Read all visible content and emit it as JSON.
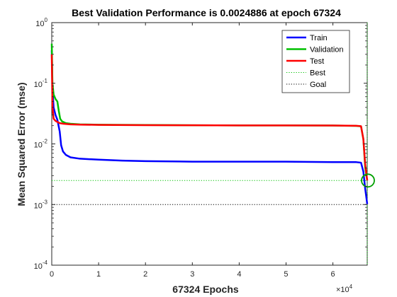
{
  "chart_data": {
    "type": "line",
    "title": "Best Validation Performance is 0.0024886 at epoch 67324",
    "xlabel": "67324 Epochs",
    "ylabel": "Mean Squared Error  (mse)",
    "x_multiplier_label": "×10",
    "x_multiplier_exponent": "4",
    "xlim": [
      0,
      67324
    ],
    "ylim": [
      0.0001,
      1
    ],
    "yscale": "log",
    "x_ticks": [
      0,
      10000,
      20000,
      30000,
      40000,
      50000,
      60000
    ],
    "x_tick_labels": [
      "0",
      "1",
      "2",
      "3",
      "4",
      "5",
      "6"
    ],
    "y_ticks": [
      0.0001,
      0.001,
      0.01,
      0.1,
      1
    ],
    "y_tick_labels": [
      {
        "base": "10",
        "exp": "-4"
      },
      {
        "base": "10",
        "exp": "-3"
      },
      {
        "base": "10",
        "exp": "-2"
      },
      {
        "base": "10",
        "exp": "-1"
      },
      {
        "base": "10",
        "exp": "0"
      }
    ],
    "grid": false,
    "legend_position": "top-right",
    "series": [
      {
        "name": "Train",
        "color": "#0000ff",
        "style": "solid",
        "x": [
          0,
          150,
          400,
          800,
          1200,
          1700,
          2000,
          2400,
          3000,
          4000,
          6000,
          10000,
          15000,
          20000,
          30000,
          40000,
          50000,
          60000,
          65000,
          66000,
          66500,
          66900,
          67324
        ],
        "y": [
          0.35,
          0.08,
          0.04,
          0.03,
          0.025,
          0.016,
          0.0095,
          0.0075,
          0.0066,
          0.006,
          0.0057,
          0.0055,
          0.0053,
          0.0052,
          0.0051,
          0.0051,
          0.0051,
          0.005,
          0.005,
          0.0049,
          0.0035,
          0.0018,
          0.00102
        ]
      },
      {
        "name": "Validation",
        "color": "#00c000",
        "style": "solid",
        "x": [
          0,
          150,
          400,
          800,
          1200,
          1500,
          1800,
          2200,
          3000,
          4000,
          6000,
          10000,
          20000,
          30000,
          40000,
          50000,
          60000,
          65000,
          66000,
          66500,
          66900,
          67324
        ],
        "y": [
          0.45,
          0.1,
          0.065,
          0.055,
          0.05,
          0.035,
          0.026,
          0.0235,
          0.022,
          0.0215,
          0.021,
          0.0207,
          0.0205,
          0.0203,
          0.0202,
          0.0202,
          0.0201,
          0.0198,
          0.0195,
          0.012,
          0.004,
          0.0024886
        ]
      },
      {
        "name": "Test",
        "color": "#ff0000",
        "style": "solid",
        "x": [
          0,
          150,
          400,
          800,
          1200,
          1700,
          2500,
          4000,
          6000,
          10000,
          20000,
          30000,
          40000,
          50000,
          60000,
          65000,
          66000,
          66500,
          66900,
          67324
        ],
        "y": [
          0.3,
          0.04,
          0.026,
          0.024,
          0.023,
          0.022,
          0.0215,
          0.021,
          0.0208,
          0.0206,
          0.0204,
          0.0203,
          0.0202,
          0.0202,
          0.0201,
          0.0199,
          0.0196,
          0.012,
          0.0045,
          0.0025
        ]
      }
    ],
    "reference_lines": [
      {
        "name": "Best",
        "color": "#00c000",
        "style": "dotted",
        "orientation": "vertical",
        "x": 67324
      },
      {
        "name": "Best",
        "color": "#00c000",
        "style": "dotted",
        "orientation": "horizontal",
        "y": 0.0024886
      },
      {
        "name": "Goal",
        "color": "#000000",
        "style": "dotted",
        "orientation": "horizontal",
        "y": 0.001
      }
    ],
    "best_marker": {
      "x": 67324,
      "y": 0.0024886,
      "color": "#00a000"
    },
    "legend": [
      {
        "name": "Train",
        "color": "#0000ff",
        "style": "solid"
      },
      {
        "name": "Validation",
        "color": "#00c000",
        "style": "solid"
      },
      {
        "name": "Test",
        "color": "#ff0000",
        "style": "solid"
      },
      {
        "name": "Best",
        "color": "#00c000",
        "style": "dotted"
      },
      {
        "name": "Goal",
        "color": "#000000",
        "style": "dotted"
      }
    ]
  }
}
